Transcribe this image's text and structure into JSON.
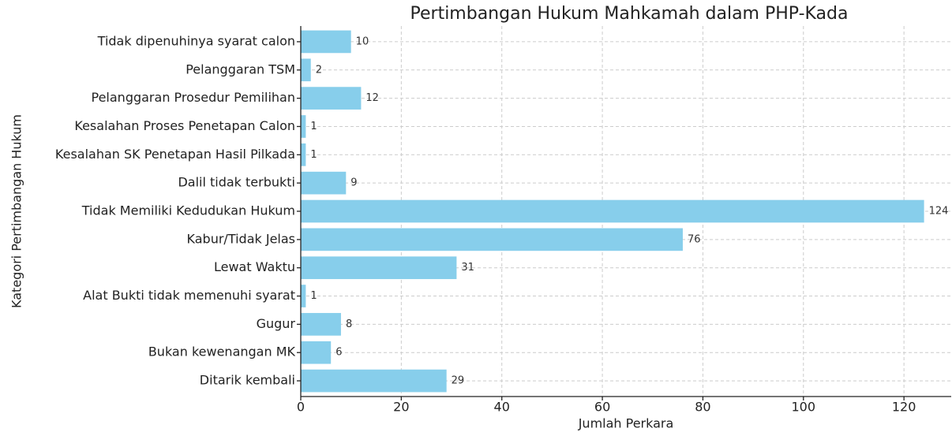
{
  "chart_data": {
    "type": "barh",
    "title": "Pertimbangan Hukum Mahkamah dalam PHP-Kada",
    "xlabel": "Jumlah Perkara",
    "ylabel": "Kategori Pertimbangan Hukum",
    "categories": [
      "Tidak dipenuhinya syarat calon",
      "Pelanggaran TSM",
      "Pelanggaran Prosedur Pemilihan",
      "Kesalahan Proses Penetapan Calon",
      "Kesalahan SK Penetapan Hasil Pilkada",
      "Dalil tidak terbukti",
      "Tidak Memiliki Kedudukan Hukum",
      "Kabur/Tidak Jelas",
      "Lewat Waktu",
      "Alat Bukti tidak memenuhi syarat",
      "Gugur",
      "Bukan kewenangan MK",
      "Ditarik kembali"
    ],
    "values": [
      10,
      2,
      12,
      1,
      1,
      9,
      124,
      76,
      31,
      1,
      8,
      6,
      29
    ],
    "color": "#87ceeb",
    "xlim": [
      0,
      129.4
    ],
    "xticks": [
      0,
      20,
      40,
      60,
      80,
      100,
      120
    ],
    "grid": true
  }
}
